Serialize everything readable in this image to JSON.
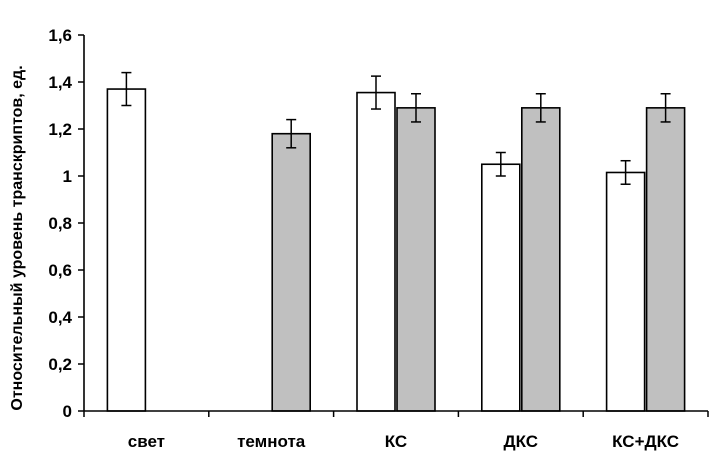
{
  "chart_data": {
    "type": "bar",
    "title": "",
    "xlabel": "",
    "ylabel": "Относительный уровень транскриптов, ед.",
    "ylim": [
      0,
      1.6
    ],
    "yticks": [
      "0",
      "0,2",
      "0,4",
      "0,6",
      "0,8",
      "1",
      "1,2",
      "1,4",
      "1,6"
    ],
    "categories": [
      "свет",
      "темнота",
      "КС",
      "ДКС",
      "КС+ДКС"
    ],
    "series": [
      {
        "color": "#ffffff",
        "values": [
          1.37,
          null,
          1.355,
          1.05,
          1.015
        ],
        "errors": [
          0.07,
          null,
          0.07,
          0.05,
          0.05
        ]
      },
      {
        "color": "#c0c0c0",
        "values": [
          null,
          1.18,
          1.29,
          1.29,
          1.29
        ],
        "errors": [
          null,
          0.06,
          0.06,
          0.06,
          0.06
        ]
      }
    ],
    "grid": false,
    "legend": "none"
  }
}
